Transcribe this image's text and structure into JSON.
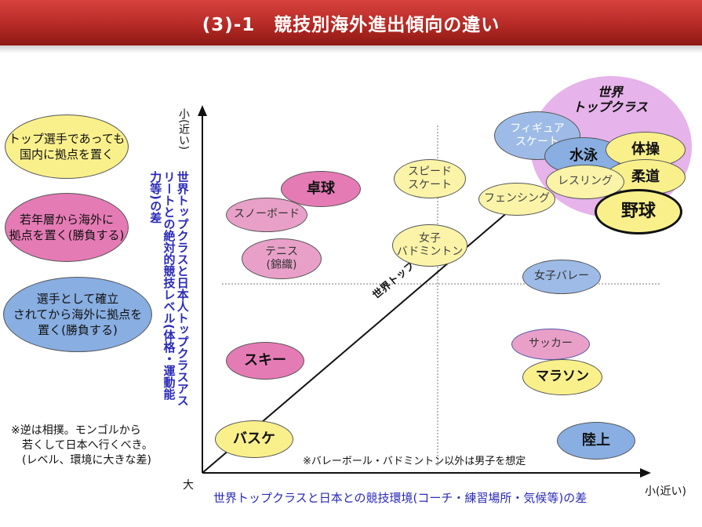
{
  "title": "(3)-1　競技別海外進出傾向の違い",
  "legend": {
    "yellow": "トップ選手であっても\n国内に拠点を置く",
    "pink": "若年層から海外に\n拠点を置く(勝負する)",
    "blue": "選手として確立\nされてから海外に拠点を\n置く(勝負する)"
  },
  "axes": {
    "y_top": "小(近い)",
    "origin": "大",
    "x_right": "小(近い)",
    "x_title": "世界トップクラスと日本との競技環境(コーチ・練習場所・気候等)の差",
    "y_title": "世界トップクラスと日本人トップクラスアスリートとの絶対的競技レベル(体格・運動能力等)の差",
    "diagonal": "世界トップとの差"
  },
  "world_top": "世界\nトップクラス",
  "sports": {
    "figure": "フィギュア\nスケート",
    "swim": "水泳",
    "gym": "体操",
    "judo": "柔道",
    "wrestling": "レスリング",
    "baseball": "野球",
    "fencing": "フェンシング",
    "speed": "スピード\nスケート",
    "badminton": "女子\nバドミントン",
    "pingpong": "卓球",
    "snowboard": "スノーボード",
    "tennis": "テニス\n(錦織)",
    "volley": "女子バレー",
    "soccer": "サッカー",
    "marathon": "マラソン",
    "ski": "スキー",
    "basket": "バスケ",
    "track": "陸上"
  },
  "notes": {
    "sumo": "※逆は相撲。モンゴルから\n　若くして日本へ行くべき。\n　(レベル、環境に大きな差)",
    "assumption": "※バレーボール・バドミントン以外は男子を想定"
  },
  "colors": {
    "header": "#b52a25",
    "pink": "#e57bb5",
    "blue": "#88aee2",
    "yellow": "#f9f08c",
    "world_top_bg": "#e6b3ea",
    "axis_title": "#2a2ab8"
  }
}
